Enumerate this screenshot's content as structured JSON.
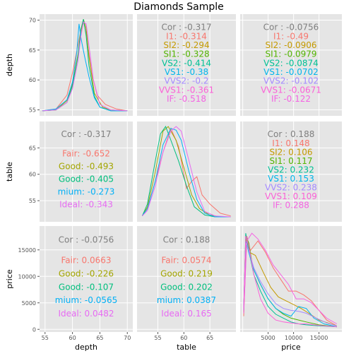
{
  "title": "Diamonds Sample",
  "variables": [
    "depth",
    "table",
    "price"
  ],
  "corr_label_prefix": "Cor : ",
  "colors": {
    "I1": "#F8766D",
    "SI2": "#C49A00",
    "SI1": "#53B400",
    "VS2": "#00C094",
    "VS1": "#00B6EB",
    "VVS2": "#A58AFF",
    "VVS1": "#FB61D7",
    "IF": "#F564E3",
    "Fair": "#F8766D",
    "Good": "#A3A500",
    "Very Good": "#00BF7D",
    "Premium": "#00B0F6",
    "Ideal": "#E76BF3",
    "panel_bg": "#E5E5E5",
    "grid": "#FFFFFF",
    "corhead": "#7F7F7F"
  },
  "chart_data": {
    "type": "scatter",
    "layout": "pairs-matrix",
    "title": "Diamonds Sample",
    "axes": {
      "depth": {
        "range": [
          54,
          71
        ],
        "ticks": [
          55,
          60,
          65,
          70
        ],
        "tick_labels": [
          "55",
          "60",
          "65",
          "70"
        ]
      },
      "table": {
        "range": [
          51,
          70
        ],
        "ticks": [
          55,
          60,
          65
        ],
        "tick_labels": [
          "55",
          "60",
          "65"
        ]
      },
      "price": {
        "range": [
          -500,
          19500
        ],
        "ticks": [
          0,
          5000,
          10000,
          15000
        ],
        "tick_labels": [
          "0",
          "5000",
          "10000",
          "15000"
        ]
      }
    },
    "x_tick_labels": {
      "depth": [
        "55",
        "60",
        "65",
        "70"
      ],
      "table": [
        "55",
        "60",
        "65"
      ],
      "price": [
        "5000",
        "10000",
        "15000"
      ]
    },
    "y_tick_labels": {
      "depth": [
        "70",
        "65",
        "60",
        "55"
      ],
      "table": [
        "65",
        "60",
        "55"
      ],
      "price": [
        "15000",
        "10000",
        "5000",
        "0"
      ]
    },
    "correlations": [
      {
        "row": "depth",
        "col": "table",
        "overall": "-0.317",
        "groups": [
          {
            "name": "I1",
            "label": "I1: -0.314"
          },
          {
            "name": "SI2",
            "label": "SI2: -0.294"
          },
          {
            "name": "SI1",
            "label": "SI1: -0.328"
          },
          {
            "name": "VS2",
            "label": "VS2: -0.414"
          },
          {
            "name": "VS1",
            "label": "VS1: -0.38"
          },
          {
            "name": "VVS2",
            "label": "VVS2: -0.2"
          },
          {
            "name": "VVS1",
            "label": "VVS1: -0.361"
          },
          {
            "name": "IF",
            "label": "IF: -0.518"
          }
        ]
      },
      {
        "row": "depth",
        "col": "price",
        "overall": "-0.0756",
        "groups": [
          {
            "name": "I1",
            "label": "I1: -0.49"
          },
          {
            "name": "SI2",
            "label": "SI2: -0.0906"
          },
          {
            "name": "SI1",
            "label": "SI1: -0.0979"
          },
          {
            "name": "VS2",
            "label": "VS2: -0.0874"
          },
          {
            "name": "VS1",
            "label": "VS1: -0.0702"
          },
          {
            "name": "VVS2",
            "label": "VVS2: -0.102"
          },
          {
            "name": "VVS1",
            "label": "VVS1: -0.0671"
          },
          {
            "name": "IF",
            "label": "IF: -0.122"
          }
        ]
      },
      {
        "row": "table",
        "col": "depth",
        "overall": "-0.317",
        "groups": [
          {
            "name": "Fair",
            "label": "Fair: -0.652"
          },
          {
            "name": "Good",
            "label": "Good: -0.493"
          },
          {
            "name": "Very Good",
            "label": "Good: -0.405"
          },
          {
            "name": "Premium",
            "label": "mium: -0.273"
          },
          {
            "name": "Ideal",
            "label": "Ideal: -0.343"
          }
        ]
      },
      {
        "row": "table",
        "col": "price",
        "overall": "0.188",
        "groups": [
          {
            "name": "I1",
            "label": "I1: 0.148"
          },
          {
            "name": "SI2",
            "label": "SI2: 0.106"
          },
          {
            "name": "SI1",
            "label": "SI1: 0.117"
          },
          {
            "name": "VS2",
            "label": "VS2: 0.232"
          },
          {
            "name": "VS1",
            "label": "VS1: 0.153"
          },
          {
            "name": "VVS2",
            "label": "VVS2: 0.238"
          },
          {
            "name": "VVS1",
            "label": "VVS1: 0.109"
          },
          {
            "name": "IF",
            "label": "IF: 0.288"
          }
        ]
      },
      {
        "row": "price",
        "col": "depth",
        "overall": "-0.0756",
        "groups": [
          {
            "name": "Fair",
            "label": "Fair: 0.0663"
          },
          {
            "name": "Good",
            "label": "Good: -0.226"
          },
          {
            "name": "Very Good",
            "label": "Good: -0.107"
          },
          {
            "name": "Premium",
            "label": "mium: -0.0565"
          },
          {
            "name": "Ideal",
            "label": "Ideal: 0.0482"
          }
        ]
      },
      {
        "row": "price",
        "col": "table",
        "overall": "0.188",
        "groups": [
          {
            "name": "Fair",
            "label": "Fair: 0.0574"
          },
          {
            "name": "Good",
            "label": "Good: 0.219"
          },
          {
            "name": "Very Good",
            "label": "Good: 0.202"
          },
          {
            "name": "Premium",
            "label": "mium: 0.0387"
          },
          {
            "name": "Ideal",
            "label": "Ideal: 0.165"
          }
        ]
      }
    ],
    "densities": [
      {
        "variable": "depth",
        "series": [
          {
            "name": "Fair",
            "x": [
              54.5,
              57,
              59,
              60,
              61,
              61.6,
              62,
              62.5,
              63.5,
              64.5,
              66,
              68,
              70
            ],
            "y": [
              0.01,
              0.03,
              0.18,
              0.42,
              0.72,
              0.9,
              0.98,
              0.85,
              0.42,
              0.18,
              0.08,
              0.03,
              0.01
            ]
          },
          {
            "name": "Good",
            "x": [
              54.5,
              57,
              59,
              60,
              61,
              61.6,
              62,
              62.5,
              63,
              64,
              65.5,
              67,
              70
            ],
            "y": [
              0.01,
              0.02,
              0.12,
              0.3,
              0.62,
              0.85,
              1.0,
              0.9,
              0.6,
              0.2,
              0.05,
              0.02,
              0.01
            ]
          },
          {
            "name": "Very Good",
            "x": [
              54.5,
              57,
              59,
              60,
              61,
              61.5,
              62,
              62.5,
              63,
              64,
              65,
              67,
              70
            ],
            "y": [
              0.01,
              0.02,
              0.1,
              0.28,
              0.6,
              0.88,
              1.0,
              0.82,
              0.5,
              0.17,
              0.05,
              0.01,
              0.01
            ]
          },
          {
            "name": "Premium",
            "x": [
              54.5,
              57,
              59,
              60,
              60.8,
              61.2,
              61.6,
              62.2,
              63,
              64,
              65,
              67,
              70
            ],
            "y": [
              0.01,
              0.03,
              0.13,
              0.32,
              0.65,
              0.95,
              0.78,
              0.6,
              0.38,
              0.15,
              0.05,
              0.01,
              0.01
            ]
          },
          {
            "name": "Ideal",
            "x": [
              54.5,
              57,
              59,
              60,
              61,
              61.5,
              62,
              62.5,
              63,
              63.8,
              65,
              67,
              70
            ],
            "y": [
              0.01,
              0.02,
              0.1,
              0.25,
              0.55,
              0.8,
              0.97,
              0.95,
              0.72,
              0.35,
              0.08,
              0.02,
              0.01
            ]
          }
        ]
      },
      {
        "variable": "table",
        "series": [
          {
            "name": "Fair",
            "x": [
              52,
              53,
              54.5,
              56,
              57.5,
              59,
              60.5,
              61.5,
              62.5,
              63.5,
              65,
              67,
              69
            ],
            "y": [
              0.02,
              0.1,
              0.4,
              0.72,
              0.98,
              0.78,
              0.32,
              0.4,
              0.45,
              0.25,
              0.15,
              0.05,
              0.02
            ]
          },
          {
            "name": "Good",
            "x": [
              52,
              53,
              54.5,
              56,
              57,
              58.5,
              60,
              61.5,
              63,
              65,
              67,
              69
            ],
            "y": [
              0.02,
              0.12,
              0.5,
              0.95,
              1.0,
              0.85,
              0.55,
              0.25,
              0.1,
              0.03,
              0.01,
              0.01
            ]
          },
          {
            "name": "Very Good",
            "x": [
              52,
              53,
              54.5,
              55.5,
              56.5,
              57.5,
              59,
              60.5,
              62,
              64,
              66,
              69
            ],
            "y": [
              0.02,
              0.15,
              0.62,
              0.92,
              1.0,
              0.85,
              0.62,
              0.35,
              0.12,
              0.03,
              0.01,
              0.01
            ]
          },
          {
            "name": "Premium",
            "x": [
              52,
              53,
              54.5,
              56,
              57.5,
              58.5,
              59.5,
              61,
              62.5,
              64,
              66,
              69
            ],
            "y": [
              0.02,
              0.1,
              0.4,
              0.8,
              0.98,
              0.96,
              0.85,
              0.5,
              0.2,
              0.05,
              0.01,
              0.01
            ]
          },
          {
            "name": "Ideal",
            "x": [
              52,
              53,
              54.5,
              56,
              57.5,
              58.5,
              59.5,
              61,
              62.5,
              64,
              66,
              69
            ],
            "y": [
              0.02,
              0.08,
              0.35,
              0.72,
              0.95,
              1.0,
              0.95,
              0.62,
              0.28,
              0.07,
              0.02,
              0.01
            ]
          }
        ]
      },
      {
        "variable": "price",
        "series": [
          {
            "name": "I1",
            "x": [
              200,
              800,
              1500,
              3000,
              4500,
              6000,
              7500,
              9000,
              10500,
              12000,
              13500,
              15000,
              16500,
              18500
            ],
            "y": [
              0.12,
              0.95,
              0.8,
              0.9,
              0.78,
              0.62,
              0.5,
              0.38,
              0.38,
              0.34,
              0.28,
              0.18,
              0.08,
              0.02
            ]
          },
          {
            "name": "SI2",
            "x": [
              200,
              700,
              1400,
              2500,
              4000,
              5500,
              7000,
              8500,
              10000,
              11500,
              13000,
              15000,
              18500
            ],
            "y": [
              0.15,
              0.92,
              0.78,
              0.75,
              0.58,
              0.42,
              0.32,
              0.28,
              0.24,
              0.2,
              0.15,
              0.08,
              0.02
            ]
          },
          {
            "name": "SI1",
            "x": [
              200,
              600,
              1200,
              2000,
              3500,
              5000,
              6500,
              8000,
              9500,
              11000,
              12500,
              15000,
              18500
            ],
            "y": [
              0.18,
              0.95,
              0.88,
              0.62,
              0.45,
              0.3,
              0.2,
              0.14,
              0.1,
              0.08,
              0.06,
              0.03,
              0.01
            ]
          },
          {
            "name": "VS2",
            "x": [
              200,
              600,
              1200,
              2200,
              3500,
              5000,
              6500,
              8000,
              9500,
              11000,
              12500,
              15000,
              18500
            ],
            "y": [
              0.18,
              0.98,
              0.8,
              0.55,
              0.38,
              0.22,
              0.14,
              0.1,
              0.06,
              0.04,
              0.03,
              0.02,
              0.01
            ]
          },
          {
            "name": "VS1",
            "x": [
              200,
              600,
              1200,
              2200,
              3500,
              5000,
              6500,
              8000,
              9500,
              11000,
              12500,
              14000,
              16000,
              18500
            ],
            "y": [
              0.18,
              0.9,
              0.78,
              0.6,
              0.45,
              0.3,
              0.2,
              0.15,
              0.12,
              0.22,
              0.2,
              0.1,
              0.04,
              0.01
            ]
          },
          {
            "name": "VVS2",
            "x": [
              200,
              600,
              1200,
              2200,
              3500,
              5000,
              6500,
              8000,
              9500,
              11000,
              12500,
              14500,
              16500,
              18500
            ],
            "y": [
              0.18,
              0.88,
              0.8,
              0.62,
              0.48,
              0.35,
              0.25,
              0.2,
              0.18,
              0.17,
              0.15,
              0.1,
              0.05,
              0.02
            ]
          },
          {
            "name": "VVS1",
            "x": [
              200,
              600,
              1200,
              2200,
              3500,
              5000,
              6500,
              8000,
              9500,
              11000,
              12500,
              14000,
              16000,
              18500
            ],
            "y": [
              0.2,
              0.95,
              0.85,
              0.55,
              0.3,
              0.15,
              0.08,
              0.06,
              0.05,
              0.04,
              0.04,
              0.03,
              0.02,
              0.01
            ]
          },
          {
            "name": "IF",
            "x": [
              200,
              800,
              1800,
              3000,
              4500,
              6000,
              7500,
              9000,
              10500,
              12000,
              13500,
              15000,
              16500,
              18500
            ],
            "y": [
              0.15,
              0.9,
              0.98,
              0.92,
              0.8,
              0.65,
              0.55,
              0.45,
              0.3,
              0.3,
              0.26,
              0.18,
              0.1,
              0.04
            ]
          }
        ]
      }
    ]
  }
}
